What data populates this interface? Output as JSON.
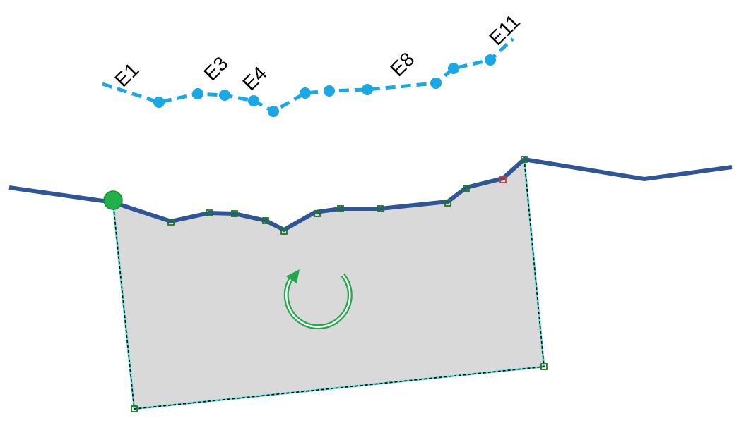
{
  "colors": {
    "background": "#ffffff",
    "dashed_line": "#1aa7e6",
    "main_line": "#2f5597",
    "polygon_fill": "#d9d9d9",
    "polygon_outline": "#5ee0d8",
    "polygon_dash": "#000000",
    "vertex_handle": "#1a7a1a",
    "selected_vertex": "#e03030",
    "start_node": "#22b04b",
    "rotate_arrow": "#22a84a"
  },
  "icons": {
    "rotate": "rotate-clockwise-icon",
    "start_node": "start-node-icon"
  },
  "labels": {
    "e1": "E1",
    "e3": "E3",
    "e4": "E4",
    "e8": "E8",
    "e11": "E11"
  }
}
